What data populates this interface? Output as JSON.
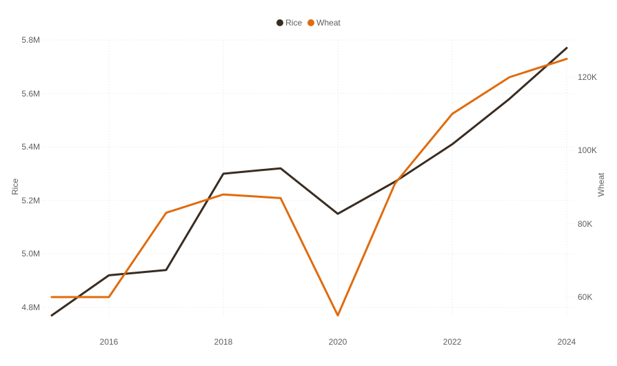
{
  "chart_data": {
    "type": "line",
    "legend_position": "top-center",
    "grid": "dotted",
    "background_color": "#FFFFFF",
    "gridline_color": "#E2E2E2",
    "text_color": "#605E5C",
    "x": [
      2015,
      2016,
      2017,
      2018,
      2019,
      2020,
      2021,
      2022,
      2023,
      2024
    ],
    "x_axis": {
      "tick_years": [
        2016,
        2018,
        2020,
        2022,
        2024
      ],
      "tick_labels": [
        "2016",
        "2018",
        "2020",
        "2022",
        "2024"
      ]
    },
    "left_axis": {
      "title": "Rice",
      "min": 4.8,
      "max": 5.8,
      "ticks": [
        {
          "value": 5.8,
          "label": "5.8M"
        },
        {
          "value": 5.6,
          "label": "5.6M"
        },
        {
          "value": 5.4,
          "label": "5.4M"
        },
        {
          "value": 5.2,
          "label": "5.2M"
        },
        {
          "value": 5.0,
          "label": "5.0M"
        },
        {
          "value": 4.8,
          "label": "4.8M"
        }
      ]
    },
    "right_axis": {
      "title": "Wheat",
      "min": 60,
      "max": 120,
      "ticks": [
        {
          "value": 120,
          "label": "120K"
        },
        {
          "value": 100,
          "label": "100K"
        },
        {
          "value": 80,
          "label": "80K"
        },
        {
          "value": 60,
          "label": "60K"
        }
      ]
    },
    "series": [
      {
        "name": "Rice",
        "axis": "left",
        "unit": "M",
        "color": "#392C21",
        "values": [
          4.77,
          4.92,
          4.94,
          5.3,
          5.32,
          5.15,
          5.27,
          5.41,
          5.58,
          5.77
        ]
      },
      {
        "name": "Wheat",
        "axis": "right",
        "unit": "K",
        "color": "#E06B0D",
        "values": [
          60,
          60,
          83,
          88,
          87,
          55,
          91,
          110,
          120,
          125
        ]
      }
    ]
  }
}
